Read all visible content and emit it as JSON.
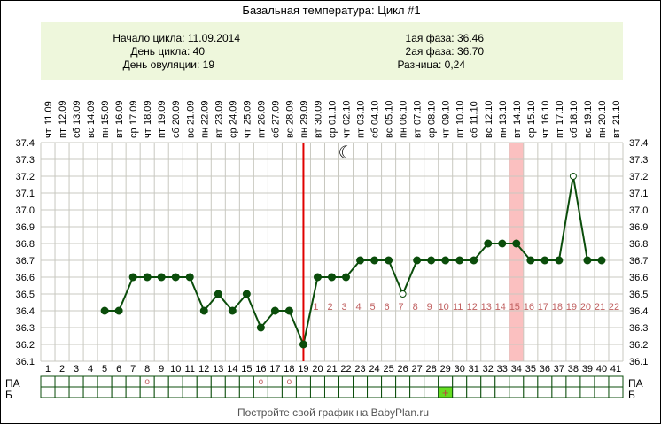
{
  "title": "Базальная температура: Цикл #1",
  "summary": {
    "left": [
      "Начало цикла: 11.09.2014",
      "День цикла: 40",
      "День овуляции: 19"
    ],
    "right": [
      "1ая фаза: 36.46",
      "2ая фаза: 36.70",
      "Разница: 0,24"
    ]
  },
  "footer": "Постройте свой график на BabyPlan.ru",
  "row_labels": {
    "pa": "ПА",
    "b": "Б"
  },
  "colors": {
    "line": "#0b4d0b",
    "ovulation_line": "#e00000",
    "highlight": "#fbc0c0",
    "header_bg": "#eef7dc",
    "grid": "#c8c8c0",
    "phase_label": "#c06060",
    "b_fill": "#66dd22",
    "marker": "#c06060"
  },
  "chart_data": {
    "type": "line",
    "title": "Базальная температура: Цикл #1",
    "ylim": [
      36.1,
      37.4
    ],
    "y_ticks": [
      "37.4",
      "37.3",
      "37.2",
      "37.1",
      "37.0",
      "36.9",
      "36.8",
      "36.7",
      "36.6",
      "36.5",
      "36.4",
      "36.3",
      "36.2",
      "36.1"
    ],
    "grid": true,
    "days": [
      1,
      2,
      3,
      4,
      5,
      6,
      7,
      8,
      9,
      10,
      11,
      12,
      13,
      14,
      15,
      16,
      17,
      18,
      19,
      20,
      21,
      22,
      23,
      24,
      25,
      26,
      27,
      28,
      29,
      30,
      31,
      32,
      33,
      34,
      35,
      36,
      37,
      38,
      39,
      40,
      41
    ],
    "weekdays": [
      "чт",
      "пт",
      "сб",
      "вс",
      "пн",
      "вт",
      "ср",
      "чт",
      "пт",
      "сб",
      "вс",
      "пн",
      "вт",
      "ср",
      "чт",
      "пт",
      "сб",
      "вс",
      "пн",
      "вт",
      "ср",
      "чт",
      "пт",
      "сб",
      "вс",
      "пн",
      "вт",
      "ср",
      "чт",
      "пт",
      "сб",
      "вс",
      "пн",
      "вт",
      "ср",
      "чт",
      "пт",
      "сб",
      "вс",
      "пн",
      "вт"
    ],
    "dates": [
      "11.09",
      "12.09",
      "13.09",
      "14.09",
      "15.09",
      "16.09",
      "17.09",
      "18.09",
      "19.09",
      "20.09",
      "21.09",
      "22.09",
      "23.09",
      "24.09",
      "25.09",
      "26.09",
      "27.09",
      "28.09",
      "29.09",
      "30.09",
      "01.10",
      "02.10",
      "03.10",
      "04.10",
      "05.10",
      "06.10",
      "07.10",
      "08.10",
      "09.10",
      "10.10",
      "11.10",
      "12.10",
      "13.10",
      "14.10",
      "15.10",
      "16.10",
      "17.10",
      "18.10",
      "19.10",
      "20.10",
      "21.10"
    ],
    "temperatures": [
      null,
      null,
      null,
      null,
      36.4,
      36.4,
      36.6,
      36.6,
      36.6,
      36.6,
      36.6,
      36.4,
      36.5,
      36.4,
      36.5,
      36.3,
      36.4,
      36.4,
      36.2,
      36.6,
      36.6,
      36.6,
      36.7,
      36.7,
      36.7,
      36.5,
      36.7,
      36.7,
      36.7,
      36.7,
      36.7,
      36.8,
      36.8,
      36.8,
      36.7,
      36.7,
      36.7,
      37.2,
      36.7,
      36.7,
      null
    ],
    "excluded_days": [
      26,
      38
    ],
    "ovulation_day": 19,
    "highlight_day": 34,
    "moon_day": 22,
    "luteal_labels": [
      "1",
      "2",
      "3",
      "4",
      "5",
      "6",
      "7",
      "8",
      "9",
      "10",
      "11",
      "12",
      "13",
      "14",
      "15",
      "16",
      "17",
      "18",
      "19",
      "20",
      "21",
      "22"
    ],
    "pa_days": [
      8,
      16,
      18
    ],
    "pa_symbol": "o",
    "b_days": [
      29
    ],
    "b_symbol": "+"
  }
}
